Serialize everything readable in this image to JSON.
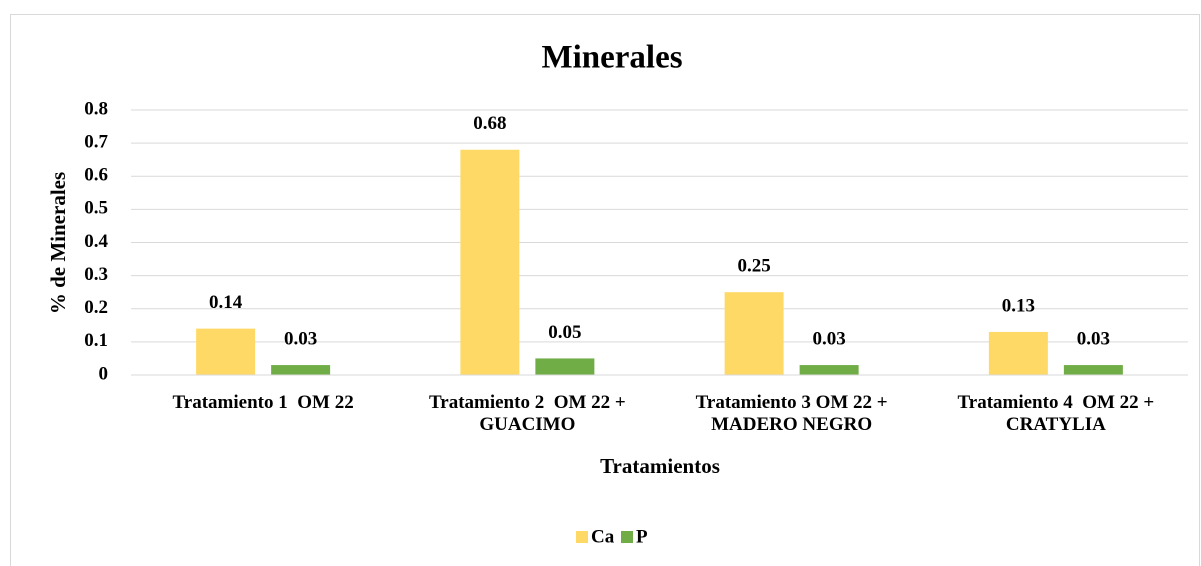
{
  "chart_data": {
    "type": "bar",
    "title": "Minerales",
    "x_label": "Tratamientos",
    "y_label": "% de Minerales",
    "categories": [
      [
        "Tratamiento 1  OM 22"
      ],
      [
        "Tratamiento 2  OM 22 +",
        "GUACIMO"
      ],
      [
        "Tratamiento 3 OM 22 +",
        "MADERO NEGRO"
      ],
      [
        "Tratamiento 4  OM 22 +",
        "CRATYLIA"
      ]
    ],
    "series": [
      {
        "name": "Ca",
        "color": "#ffd966",
        "values": [
          0.14,
          0.68,
          0.25,
          0.13
        ]
      },
      {
        "name": "P",
        "color": "#70ad47",
        "values": [
          0.03,
          0.05,
          0.03,
          0.03
        ]
      }
    ],
    "ylim": [
      0,
      0.8
    ],
    "yticks": [
      0,
      0.1,
      0.2,
      0.3,
      0.4,
      0.5,
      0.6,
      0.7,
      0.8
    ],
    "grid": true,
    "legend": "bottom"
  }
}
